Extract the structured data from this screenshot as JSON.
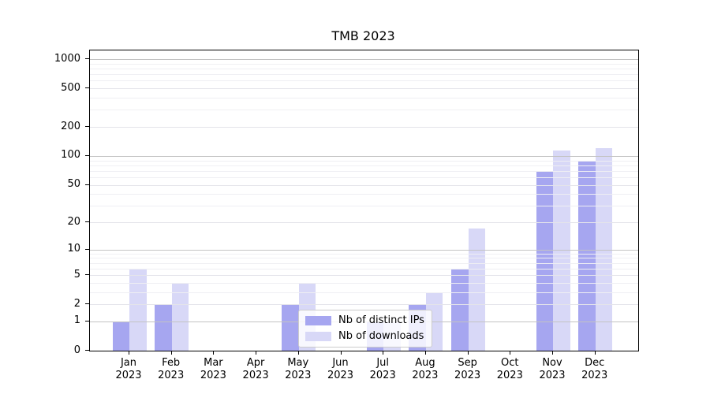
{
  "chart_data": {
    "type": "bar",
    "title": "TMB 2023",
    "categories": [
      "Jan",
      "Feb",
      "Mar",
      "Apr",
      "May",
      "Jun",
      "Jul",
      "Aug",
      "Sep",
      "Oct",
      "Nov",
      "Dec"
    ],
    "category_year": "2023",
    "series": [
      {
        "name": "Nb of distinct IPs",
        "color": "#a6a6f0",
        "values": [
          1,
          2,
          0,
          0,
          2,
          0,
          1,
          2,
          6,
          0,
          68,
          90
        ]
      },
      {
        "name": "Nb of downloads",
        "color": "#d8d8f7",
        "values": [
          6,
          4,
          0,
          0,
          4,
          0,
          1,
          3,
          17,
          0,
          115,
          120
        ]
      }
    ],
    "xlabel": "",
    "ylabel": "",
    "yscale": "log1p",
    "ylim": [
      0,
      1230
    ],
    "yticks": [
      0,
      1,
      2,
      5,
      10,
      20,
      50,
      100,
      200,
      500,
      1000
    ],
    "minor_yticks": [
      3,
      4,
      6,
      7,
      8,
      9,
      30,
      40,
      60,
      70,
      80,
      90,
      300,
      400,
      600,
      700,
      800,
      900
    ],
    "grid": true,
    "legend_position": "lower center"
  }
}
